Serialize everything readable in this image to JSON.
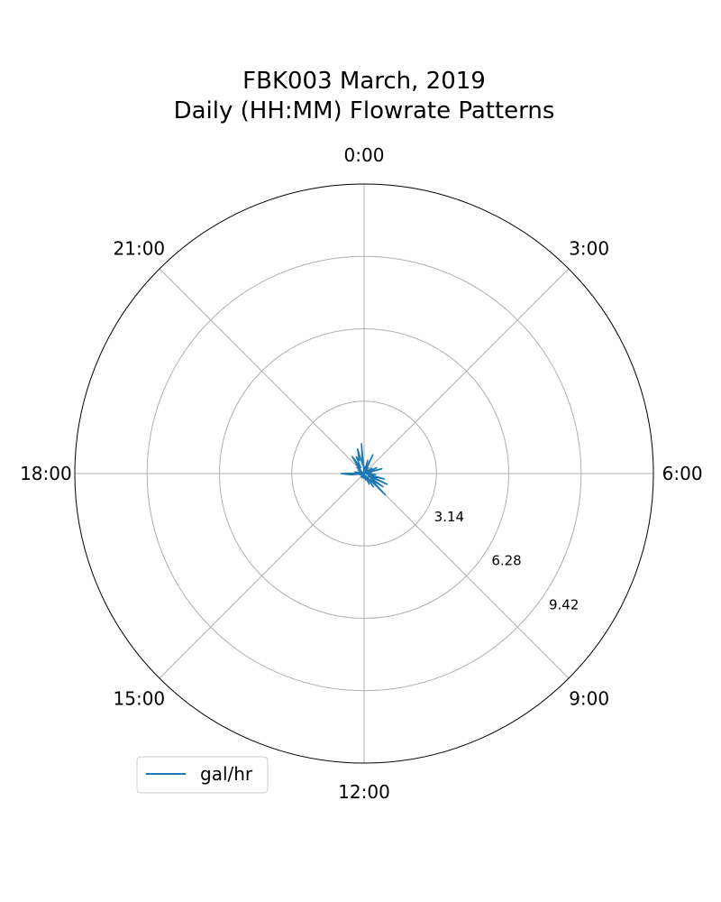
{
  "chart_data": {
    "type": "polar-line",
    "title": [
      "FBK003 March, 2019",
      "Daily (HH:MM) Flowrate Patterns"
    ],
    "theta_ticks": [
      "0:00",
      "3:00",
      "6:00",
      "9:00",
      "12:00",
      "15:00",
      "18:00",
      "21:00"
    ],
    "r_ticks": [
      "3.14",
      "6.28",
      "9.42"
    ],
    "rlim": [
      0,
      12.56
    ],
    "grid": true,
    "legend_position": "lower-left",
    "series": [
      {
        "name": "gal/hr",
        "color": "#1f77b4",
        "points": [
          [
            "0:00",
            0.0
          ],
          [
            "0:20",
            0.3
          ],
          [
            "0:40",
            0.1
          ],
          [
            "1:00",
            0.6
          ],
          [
            "1:20",
            0.2
          ],
          [
            "1:40",
            0.9
          ],
          [
            "2:00",
            0.1
          ],
          [
            "2:20",
            0.3
          ],
          [
            "2:40",
            0.0
          ],
          [
            "3:00",
            0.2
          ],
          [
            "3:20",
            0.0
          ],
          [
            "3:40",
            0.4
          ],
          [
            "4:00",
            0.1
          ],
          [
            "4:20",
            0.6
          ],
          [
            "4:40",
            0.2
          ],
          [
            "5:00",
            0.8
          ],
          [
            "5:20",
            0.1
          ],
          [
            "5:40",
            0.3
          ],
          [
            "6:00",
            0.2
          ],
          [
            "6:20",
            0.5
          ],
          [
            "6:40",
            0.1
          ],
          [
            "7:00",
            0.9
          ],
          [
            "7:20",
            0.3
          ],
          [
            "7:40",
            1.1
          ],
          [
            "8:00",
            0.2
          ],
          [
            "8:20",
            1.0
          ],
          [
            "8:40",
            0.4
          ],
          [
            "9:00",
            1.3
          ],
          [
            "9:20",
            0.2
          ],
          [
            "9:40",
            0.7
          ],
          [
            "10:00",
            0.1
          ],
          [
            "10:20",
            0.5
          ],
          [
            "10:40",
            0.0
          ],
          [
            "11:00",
            0.3
          ],
          [
            "11:20",
            0.1
          ],
          [
            "11:40",
            0.2
          ],
          [
            "12:00",
            0.0
          ],
          [
            "12:20",
            0.2
          ],
          [
            "12:40",
            0.1
          ],
          [
            "13:00",
            0.1
          ],
          [
            "13:20",
            0.0
          ],
          [
            "13:40",
            0.2
          ],
          [
            "14:00",
            0.0
          ],
          [
            "14:20",
            0.1
          ],
          [
            "14:40",
            0.0
          ],
          [
            "15:00",
            0.2
          ],
          [
            "15:20",
            0.0
          ],
          [
            "15:40",
            0.1
          ],
          [
            "16:00",
            0.0
          ],
          [
            "16:20",
            0.1
          ],
          [
            "16:40",
            0.0
          ],
          [
            "17:00",
            0.2
          ],
          [
            "17:20",
            0.1
          ],
          [
            "17:40",
            0.6
          ],
          [
            "18:00",
            1.0
          ],
          [
            "18:20",
            0.2
          ],
          [
            "18:40",
            0.4
          ],
          [
            "19:00",
            0.0
          ],
          [
            "19:20",
            0.2
          ],
          [
            "19:40",
            0.1
          ],
          [
            "20:00",
            0.3
          ],
          [
            "20:20",
            0.1
          ],
          [
            "20:40",
            0.4
          ],
          [
            "21:00",
            0.2
          ],
          [
            "21:20",
            0.5
          ],
          [
            "21:40",
            0.9
          ],
          [
            "22:00",
            0.3
          ],
          [
            "22:20",
            0.8
          ],
          [
            "22:40",
            0.6
          ],
          [
            "23:00",
            1.1
          ],
          [
            "23:20",
            0.4
          ],
          [
            "23:40",
            1.3
          ],
          [
            "0:00",
            0.0
          ]
        ]
      }
    ]
  }
}
